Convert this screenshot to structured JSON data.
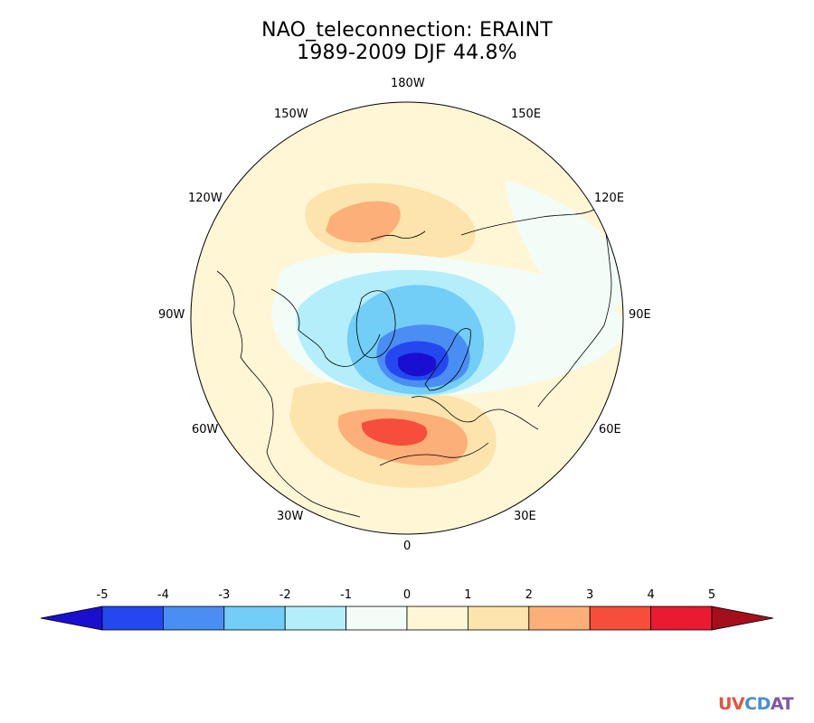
{
  "title": {
    "line1": "NAO_teleconnection: ERAINT",
    "line2": "1989-2009 DJF 44.8%"
  },
  "longitude_labels": {
    "lon_180w": "180W",
    "lon_150w": "150W",
    "lon_150e": "150E",
    "lon_120w": "120W",
    "lon_120e": "120E",
    "lon_90w": "90W",
    "lon_90e": "90E",
    "lon_60w": "60W",
    "lon_60e": "60E",
    "lon_30w": "30W",
    "lon_30e": "30E",
    "lon_0": "0"
  },
  "colorbar": {
    "ticks": [
      "-5",
      "-4",
      "-3",
      "-2",
      "-1",
      "0",
      "1",
      "2",
      "3",
      "4",
      "5"
    ],
    "colors": [
      "#1a0fcf",
      "#2448f0",
      "#4a8ef3",
      "#72cdf7",
      "#b4eefb",
      "#f2fdf7",
      "#fff6d6",
      "#fde4ac",
      "#fcaf78",
      "#f64e3a",
      "#ea1b30",
      "#a50f1c"
    ]
  },
  "map": {
    "projection": "north polar stereographic",
    "center_longitude_down": "0",
    "background_color": "#fff6d6"
  },
  "logo": {
    "part1": "UV",
    "part2": "CD",
    "part3": "AT"
  }
}
